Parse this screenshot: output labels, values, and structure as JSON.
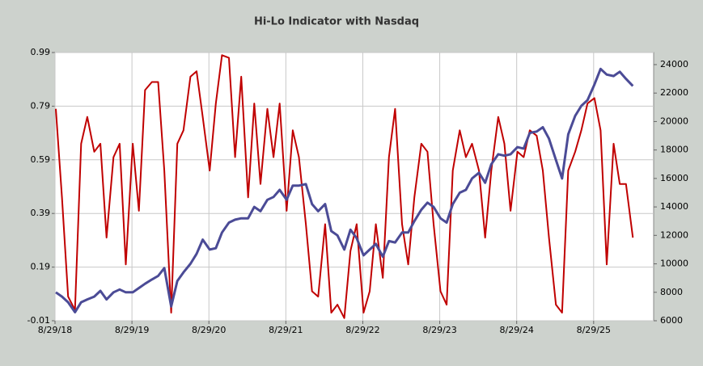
{
  "chart_data": {
    "type": "line",
    "title": "Hi-Lo Indicator with Nasdaq",
    "x": [
      2018.67,
      2018.75,
      2018.83,
      2018.92,
      2019.0,
      2019.08,
      2019.17,
      2019.25,
      2019.33,
      2019.42,
      2019.5,
      2019.58,
      2019.67,
      2019.75,
      2019.83,
      2019.92,
      2020.0,
      2020.08,
      2020.17,
      2020.25,
      2020.33,
      2020.42,
      2020.5,
      2020.58,
      2020.67,
      2020.75,
      2020.83,
      2020.92,
      2021.0,
      2021.08,
      2021.17,
      2021.25,
      2021.33,
      2021.42,
      2021.5,
      2021.58,
      2021.67,
      2021.75,
      2021.83,
      2021.92,
      2022.0,
      2022.08,
      2022.17,
      2022.25,
      2022.33,
      2022.42,
      2022.5,
      2022.58,
      2022.67,
      2022.75,
      2022.83,
      2022.92,
      2023.0,
      2023.08,
      2023.17,
      2023.25,
      2023.33,
      2023.42,
      2023.5,
      2023.58,
      2023.67,
      2023.75,
      2023.83,
      2023.92,
      2024.0,
      2024.08,
      2024.17,
      2024.25,
      2024.33,
      2024.42,
      2024.5,
      2024.58,
      2024.67,
      2024.75,
      2024.83,
      2024.92,
      2025.0,
      2025.08,
      2025.17,
      2025.25,
      2025.33,
      2025.42,
      2025.5,
      2025.58,
      2025.67,
      2025.75,
      2025.83,
      2025.92,
      2026.0,
      2026.08,
      2026.17
    ],
    "xlim": [
      2018.66,
      2026.44
    ],
    "xticks": [
      {
        "value": 2018.66,
        "label": "8/29/18"
      },
      {
        "value": 2019.66,
        "label": "8/29/19"
      },
      {
        "value": 2020.66,
        "label": "8/29/20"
      },
      {
        "value": 2021.66,
        "label": "8/29/21"
      },
      {
        "value": 2022.66,
        "label": "8/29/22"
      },
      {
        "value": 2023.66,
        "label": "8/29/23"
      },
      {
        "value": 2024.66,
        "label": "8/29/24"
      },
      {
        "value": 2025.66,
        "label": "8/29/25"
      }
    ],
    "ylim": [
      -0.01,
      0.99
    ],
    "yticks": [
      -0.01,
      0.19,
      0.39,
      0.59,
      0.79,
      0.99
    ],
    "y2lim": [
      6000,
      24850
    ],
    "y2ticks": [
      6000,
      8000,
      10000,
      12000,
      14000,
      16000,
      18000,
      20000,
      22000,
      24000
    ],
    "grid": true,
    "series": [
      {
        "color": "#c00000",
        "values": [
          0.78,
          0.45,
          0.08,
          0.03,
          0.65,
          0.75,
          0.62,
          0.65,
          0.3,
          0.6,
          0.65,
          0.2,
          0.65,
          0.4,
          0.85,
          0.88,
          0.88,
          0.55,
          0.02,
          0.65,
          0.7,
          0.9,
          0.92,
          0.75,
          0.55,
          0.8,
          0.98,
          0.97,
          0.6,
          0.9,
          0.45,
          0.8,
          0.5,
          0.78,
          0.6,
          0.8,
          0.4,
          0.7,
          0.6,
          0.35,
          0.1,
          0.08,
          0.35,
          0.02,
          0.05,
          0.0,
          0.25,
          0.35,
          0.02,
          0.1,
          0.35,
          0.15,
          0.6,
          0.78,
          0.35,
          0.2,
          0.45,
          0.65,
          0.62,
          0.35,
          0.1,
          0.05,
          0.55,
          0.7,
          0.6,
          0.65,
          0.55,
          0.3,
          0.55,
          0.75,
          0.65,
          0.4,
          0.62,
          0.6,
          0.7,
          0.68,
          0.55,
          0.3,
          0.05,
          0.02,
          0.55,
          0.62,
          0.7,
          0.8,
          0.82,
          0.7,
          0.2,
          0.65,
          0.5,
          0.5,
          0.3
        ]
      },
      {
        "color": "#4b4b96",
        "axis": "y2",
        "values": [
          8000,
          7700,
          7300,
          6600,
          7300,
          7500,
          7700,
          8100,
          7500,
          8000,
          8200,
          8000,
          8000,
          8300,
          8600,
          8900,
          9150,
          9700,
          7000,
          8800,
          9400,
          10000,
          10700,
          11700,
          11000,
          11100,
          12200,
          12900,
          13100,
          13200,
          13200,
          14000,
          13700,
          14500,
          14700,
          15200,
          14500,
          15500,
          15500,
          15600,
          14200,
          13700,
          14200,
          12300,
          12000,
          11000,
          12400,
          11800,
          10600,
          11000,
          11400,
          10500,
          11600,
          11500,
          12200,
          12200,
          13000,
          13800,
          14300,
          14000,
          13200,
          12900,
          14200,
          15000,
          15200,
          16000,
          16400,
          15700,
          17000,
          17700,
          17600,
          17700,
          18200,
          18100,
          19200,
          19300,
          19600,
          18800,
          17300,
          16000,
          19100,
          20400,
          21100,
          21500,
          22600,
          23700,
          23300,
          23200,
          23500,
          23000,
          22500
        ]
      }
    ]
  }
}
